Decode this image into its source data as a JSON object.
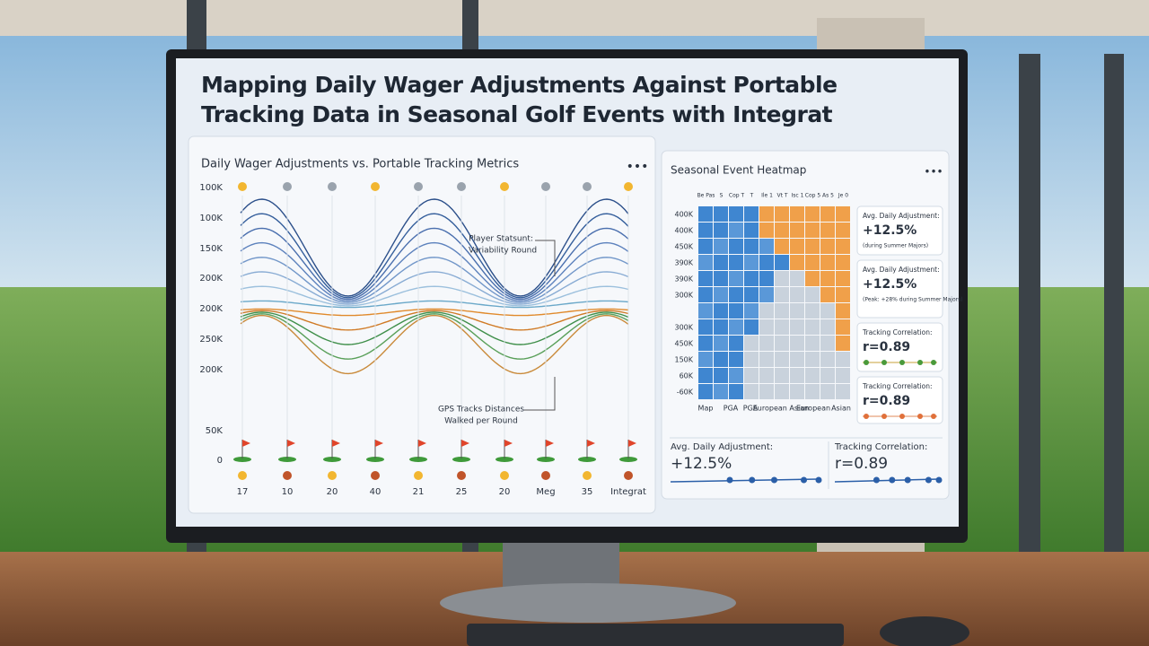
{
  "title": "Mapping Daily Wager Adjustments Against Portable Tracking Data in Seasonal Golf Events with Integrat",
  "line_panel": {
    "title": "Daily Wager Adjustments vs. Portable Tracking Metrics",
    "y_labels": [
      "100K",
      "100K",
      "150K",
      "200K",
      "200K",
      "250K",
      "200K",
      "50K",
      "0"
    ],
    "x_labels": [
      "17",
      "10",
      "20",
      "40",
      "21",
      "25",
      "20",
      "Meg",
      "35",
      "Integrat"
    ],
    "annotation_top": [
      "Player Statsunt:",
      "Variability Round"
    ],
    "annotation_bottom": [
      "GPS Tracks Distances",
      "Walked per Round"
    ]
  },
  "heatmap_panel": {
    "title": "Seasonal Event Heatmap",
    "column_labels": [
      "Be Pas",
      "S",
      "Cop T",
      "T",
      "Ile 1",
      "Vt T",
      "Isc 1",
      "Cop 5",
      "As 5",
      "Je 0"
    ],
    "row_labels": [
      "400K",
      "400K",
      "450K",
      "390K",
      "390K",
      "300K",
      null,
      "300K",
      "450K",
      "150K",
      "60K",
      "-60K"
    ],
    "x_labels": [
      "Map",
      "PGA",
      "PGA",
      "European Asian",
      "European",
      "Asian"
    ],
    "cards": [
      {
        "label": "Avg. Daily Adjustment:",
        "value": "+12.5%",
        "note": "(during Summer Majors)"
      },
      {
        "label": "Avg. Daily Adjustment:",
        "value": "+12.5%",
        "note": "(Peak: +28% during Summer Majors)"
      },
      {
        "label": "Tracking Correlation:",
        "value": "r=0.89"
      },
      {
        "label": "Tracking Correlation:",
        "value": "r=0.89"
      }
    ]
  },
  "summary": [
    {
      "label": "Avg. Daily Adjustment:",
      "value": "+12.5%"
    },
    {
      "label": "Tracking Correlation:",
      "value": "r=0.89"
    }
  ]
}
